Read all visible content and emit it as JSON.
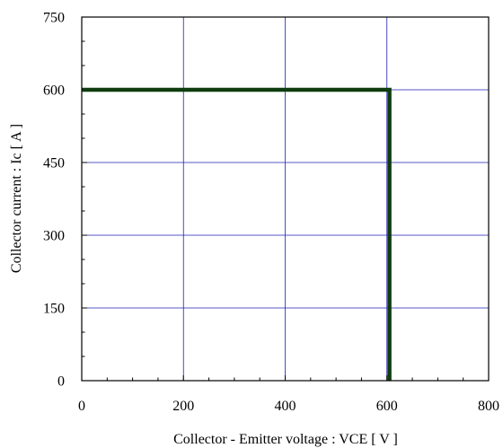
{
  "chart_data": {
    "type": "line",
    "xlabel": "Collector - Emitter voltage  :  VCE  [ V ]",
    "ylabel": "Collector current  :  Ic  [ A ]",
    "xlim": [
      0,
      800
    ],
    "ylim": [
      0,
      750
    ],
    "x_ticks": [
      0,
      200,
      400,
      600,
      800
    ],
    "y_ticks": [
      0,
      150,
      300,
      450,
      600,
      750
    ],
    "x_tick_labels": [
      "0",
      "200",
      "400",
      "600",
      "800"
    ],
    "y_tick_labels": [
      "0",
      "150",
      "300",
      "450",
      "600",
      "750"
    ],
    "x_minor_step": 50,
    "y_minor_step": 50,
    "grid": true,
    "series": [
      {
        "x": [
          0,
          605,
          605
        ],
        "y": [
          600,
          600,
          0
        ]
      }
    ]
  },
  "colors": {
    "grid": "#1f1fb4",
    "frame": "#000000",
    "series": "#0f3d0f"
  }
}
